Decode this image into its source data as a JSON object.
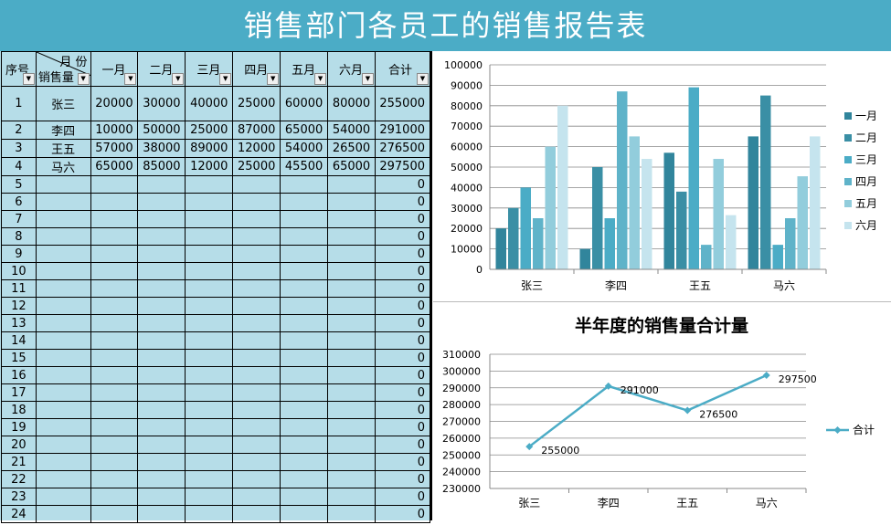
{
  "title": "销售部门各员工的销售报告表",
  "table": {
    "headers": {
      "seq": "序号",
      "corner_top": "月 份",
      "corner_bottom": "销售量",
      "months": [
        "一月",
        "二月",
        "三月",
        "四月",
        "五月",
        "六月"
      ],
      "total": "合计"
    },
    "rows": [
      {
        "seq": "1",
        "name": "张三",
        "values": [
          "20000",
          "30000",
          "40000",
          "25000",
          "60000",
          "80000"
        ],
        "total": "255000"
      },
      {
        "seq": "2",
        "name": "李四",
        "values": [
          "10000",
          "50000",
          "25000",
          "87000",
          "65000",
          "54000"
        ],
        "total": "291000"
      },
      {
        "seq": "3",
        "name": "王五",
        "values": [
          "57000",
          "38000",
          "89000",
          "12000",
          "54000",
          "26500"
        ],
        "total": "276500"
      },
      {
        "seq": "4",
        "name": "马六",
        "values": [
          "65000",
          "85000",
          "12000",
          "25000",
          "45500",
          "65000"
        ],
        "total": "297500"
      },
      {
        "seq": "5",
        "name": "",
        "values": [
          "",
          "",
          "",
          "",
          "",
          ""
        ],
        "total": "0"
      },
      {
        "seq": "6",
        "name": "",
        "values": [
          "",
          "",
          "",
          "",
          "",
          ""
        ],
        "total": "0"
      },
      {
        "seq": "7",
        "name": "",
        "values": [
          "",
          "",
          "",
          "",
          "",
          ""
        ],
        "total": "0"
      },
      {
        "seq": "8",
        "name": "",
        "values": [
          "",
          "",
          "",
          "",
          "",
          ""
        ],
        "total": "0"
      },
      {
        "seq": "9",
        "name": "",
        "values": [
          "",
          "",
          "",
          "",
          "",
          ""
        ],
        "total": "0"
      },
      {
        "seq": "10",
        "name": "",
        "values": [
          "",
          "",
          "",
          "",
          "",
          ""
        ],
        "total": "0"
      },
      {
        "seq": "11",
        "name": "",
        "values": [
          "",
          "",
          "",
          "",
          "",
          ""
        ],
        "total": "0"
      },
      {
        "seq": "12",
        "name": "",
        "values": [
          "",
          "",
          "",
          "",
          "",
          ""
        ],
        "total": "0"
      },
      {
        "seq": "13",
        "name": "",
        "values": [
          "",
          "",
          "",
          "",
          "",
          ""
        ],
        "total": "0"
      },
      {
        "seq": "14",
        "name": "",
        "values": [
          "",
          "",
          "",
          "",
          "",
          ""
        ],
        "total": "0"
      },
      {
        "seq": "15",
        "name": "",
        "values": [
          "",
          "",
          "",
          "",
          "",
          ""
        ],
        "total": "0"
      },
      {
        "seq": "16",
        "name": "",
        "values": [
          "",
          "",
          "",
          "",
          "",
          ""
        ],
        "total": "0"
      },
      {
        "seq": "17",
        "name": "",
        "values": [
          "",
          "",
          "",
          "",
          "",
          ""
        ],
        "total": "0"
      },
      {
        "seq": "18",
        "name": "",
        "values": [
          "",
          "",
          "",
          "",
          "",
          ""
        ],
        "total": "0"
      },
      {
        "seq": "19",
        "name": "",
        "values": [
          "",
          "",
          "",
          "",
          "",
          ""
        ],
        "total": "0"
      },
      {
        "seq": "20",
        "name": "",
        "values": [
          "",
          "",
          "",
          "",
          "",
          ""
        ],
        "total": "0"
      },
      {
        "seq": "21",
        "name": "",
        "values": [
          "",
          "",
          "",
          "",
          "",
          ""
        ],
        "total": "0"
      },
      {
        "seq": "22",
        "name": "",
        "values": [
          "",
          "",
          "",
          "",
          "",
          ""
        ],
        "total": "0"
      },
      {
        "seq": "23",
        "name": "",
        "values": [
          "",
          "",
          "",
          "",
          "",
          ""
        ],
        "total": "0"
      },
      {
        "seq": "24",
        "name": "",
        "values": [
          "",
          "",
          "",
          "",
          "",
          ""
        ],
        "total": "0"
      }
    ]
  },
  "colors": {
    "title_bg": "#4BACC6",
    "sheet_bg": "#B6DDE8",
    "series": [
      "#31859C",
      "#3A8FA5",
      "#4BACC6",
      "#5FB3C9",
      "#92CDDC",
      "#C5E4EE"
    ],
    "line": "#4BACC6"
  },
  "chart_data": [
    {
      "type": "bar",
      "title": "",
      "categories": [
        "张三",
        "李四",
        "王五",
        "马六"
      ],
      "series": [
        {
          "name": "一月",
          "values": [
            20000,
            10000,
            57000,
            65000
          ]
        },
        {
          "name": "二月",
          "values": [
            30000,
            50000,
            38000,
            85000
          ]
        },
        {
          "name": "三月",
          "values": [
            40000,
            25000,
            89000,
            12000
          ]
        },
        {
          "name": "四月",
          "values": [
            25000,
            87000,
            12000,
            25000
          ]
        },
        {
          "name": "五月",
          "values": [
            60000,
            65000,
            54000,
            45500
          ]
        },
        {
          "name": "六月",
          "values": [
            80000,
            54000,
            26500,
            65000
          ]
        }
      ],
      "ylim": [
        0,
        100000
      ],
      "yticks": [
        "0",
        "10000",
        "20000",
        "30000",
        "40000",
        "50000",
        "60000",
        "70000",
        "80000",
        "90000",
        "100000"
      ],
      "grid": true,
      "legend": "right"
    },
    {
      "type": "line",
      "title": "半年度的销售量合计量",
      "categories": [
        "张三",
        "李四",
        "王五",
        "马六"
      ],
      "series": [
        {
          "name": "合计",
          "values": [
            255000,
            291000,
            276500,
            297500
          ]
        }
      ],
      "data_labels": [
        "255000",
        "291000",
        "276500",
        "297500"
      ],
      "ylim": [
        230000,
        310000
      ],
      "yticks": [
        "230000",
        "240000",
        "250000",
        "260000",
        "270000",
        "280000",
        "290000",
        "300000",
        "310000"
      ],
      "grid": true,
      "legend": "right"
    }
  ]
}
